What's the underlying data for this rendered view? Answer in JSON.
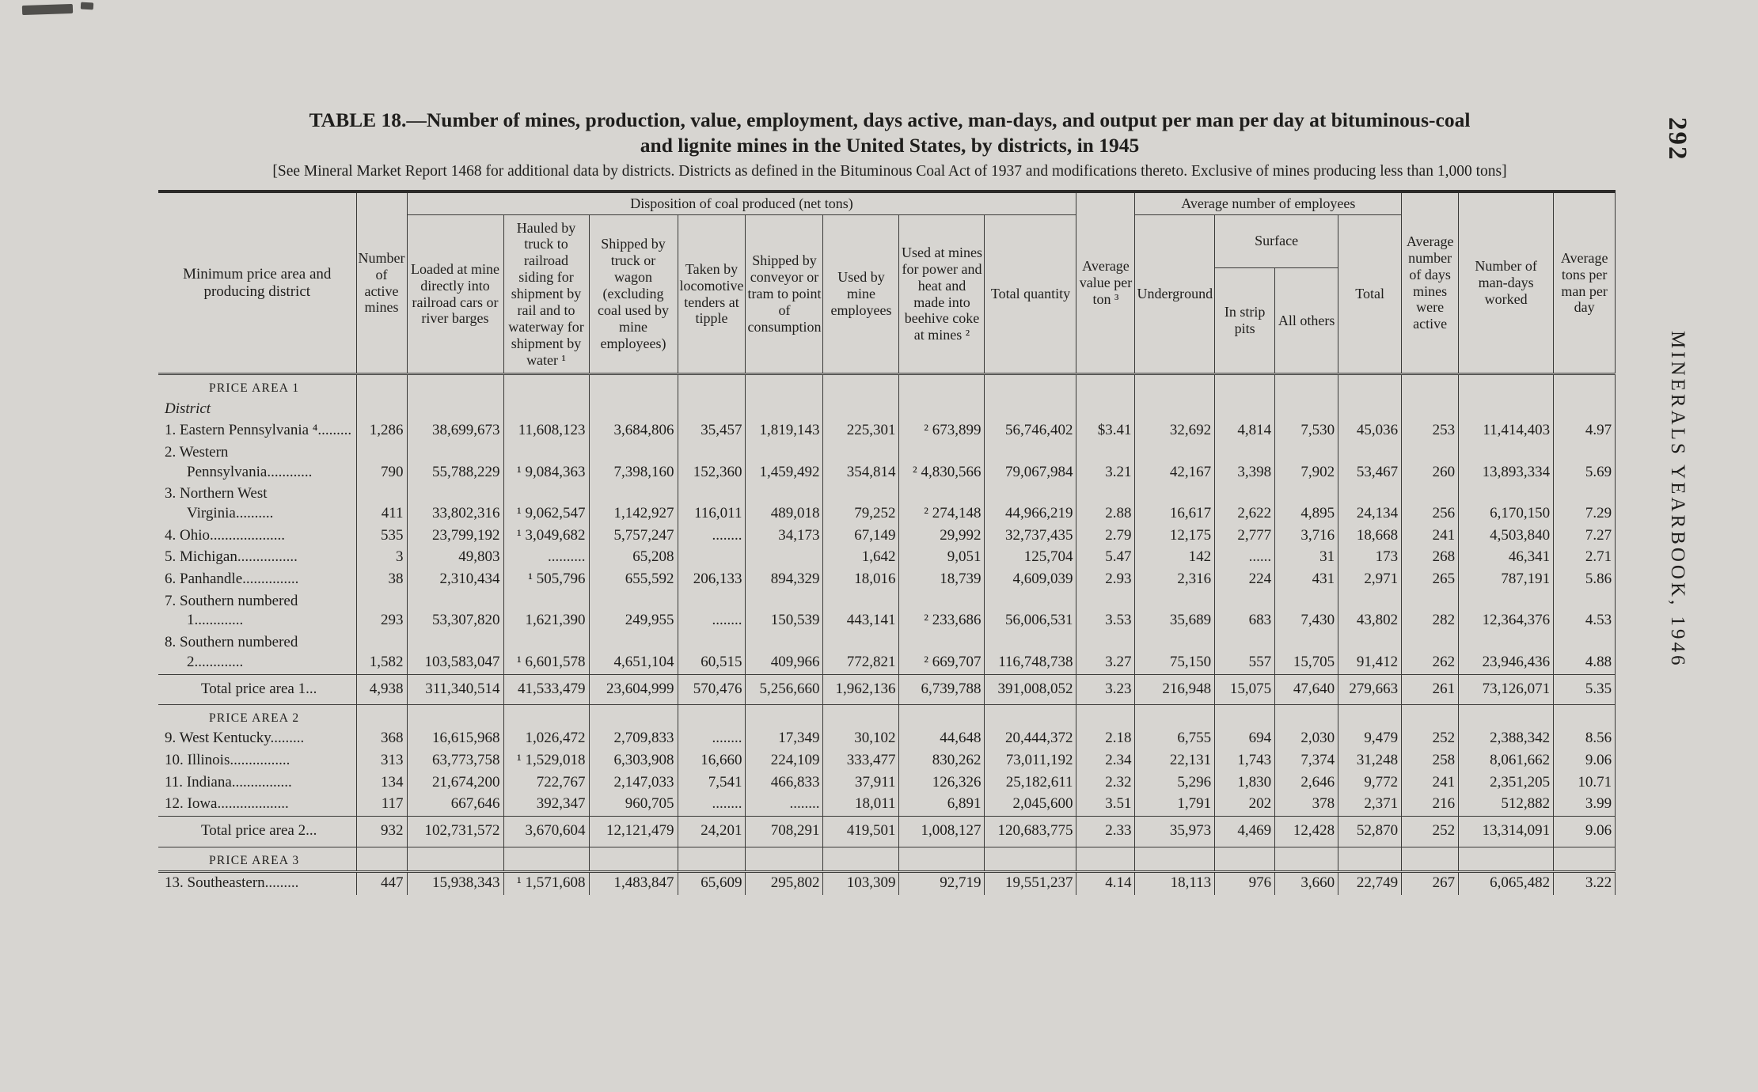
{
  "colors": {
    "paper": "#d7d5d1",
    "ink": "#1f1e1c"
  },
  "page": {
    "page_number": "292",
    "side_text": "MINERALS YEARBOOK, 1946",
    "title_line1": "TABLE 18.—Number of mines, production, value, employment, days active, man-days, and output per man per day at bituminous-coal",
    "title_line2": "and lignite mines in the United States, by districts, in 1945",
    "note": "[See Mineral Market Report 1468 for additional data by districts.  Districts as defined in the Bituminous Coal Act of 1937 and modifications thereto.  Exclusive of mines producing less than 1,000 tons]"
  },
  "table": {
    "headers": {
      "stub": "Minimum price area and producing district",
      "active_mines": "Number of active mines",
      "disposition_group": "Disposition of coal produced (net tons)",
      "disposition": [
        "Loaded at mine directly into railroad cars or river barges",
        "Hauled by truck to railroad siding for shipment by rail and to waterway for shipment by water ¹",
        "Shipped by truck or wagon (excluding coal used by mine employees)",
        "Taken by locomotive tenders at tipple",
        "Shipped by conveyor or tram to point of consumption",
        "Used by mine employees",
        "Used at mines for power and heat and made into beehive coke at mines ²",
        "Total quantity"
      ],
      "avg_value": "Average value per ton ³",
      "employees_group": "Average number of employees",
      "underground": "Underground",
      "surface_group": "Surface",
      "strip_pits": "In strip pits",
      "all_others": "All others",
      "emp_total": "Total",
      "days_active": "Average number of days mines were active",
      "man_days": "Number of man-days worked",
      "tons_per_man": "Average tons per man per day"
    },
    "rows": [
      {
        "type": "section",
        "label": "PRICE AREA 1"
      },
      {
        "type": "subhead",
        "label": "District"
      },
      {
        "type": "data",
        "label": "1. Eastern Pennsylvania ⁴.........",
        "values": [
          "1,286",
          "38,699,673",
          "11,608,123",
          "3,684,806",
          "35,457",
          "1,819,143",
          "225,301",
          "² 673,899",
          "56,746,402",
          "$3.41",
          "32,692",
          "4,814",
          "7,530",
          "45,036",
          "253",
          "11,414,403",
          "4.97"
        ]
      },
      {
        "type": "data",
        "label": "2. Western Pennsylvania............",
        "values": [
          "790",
          "55,788,229",
          "¹ 9,084,363",
          "7,398,160",
          "152,360",
          "1,459,492",
          "354,814",
          "² 4,830,566",
          "79,067,984",
          "3.21",
          "42,167",
          "3,398",
          "7,902",
          "53,467",
          "260",
          "13,893,334",
          "5.69"
        ]
      },
      {
        "type": "data",
        "label": "3. Northern West Virginia..........",
        "values": [
          "411",
          "33,802,316",
          "¹ 9,062,547",
          "1,142,927",
          "116,011",
          "489,018",
          "79,252",
          "² 274,148",
          "44,966,219",
          "2.88",
          "16,617",
          "2,622",
          "4,895",
          "24,134",
          "256",
          "6,170,150",
          "7.29"
        ]
      },
      {
        "type": "data",
        "label": "4. Ohio....................",
        "values": [
          "535",
          "23,799,192",
          "¹ 3,049,682",
          "5,757,247",
          "........",
          "34,173",
          "67,149",
          "29,992",
          "32,737,435",
          "2.79",
          "12,175",
          "2,777",
          "3,716",
          "18,668",
          "241",
          "4,503,840",
          "7.27"
        ]
      },
      {
        "type": "data",
        "label": "5. Michigan................",
        "values": [
          "3",
          "49,803",
          "..........",
          "65,208",
          "",
          "",
          "1,642",
          "9,051",
          "125,704",
          "5.47",
          "142",
          "......",
          "31",
          "173",
          "268",
          "46,341",
          "2.71"
        ]
      },
      {
        "type": "data",
        "label": "6. Panhandle...............",
        "values": [
          "38",
          "2,310,434",
          "¹ 505,796",
          "655,592",
          "206,133",
          "894,329",
          "18,016",
          "18,739",
          "4,609,039",
          "2.93",
          "2,316",
          "224",
          "431",
          "2,971",
          "265",
          "787,191",
          "5.86"
        ]
      },
      {
        "type": "data",
        "label": "7. Southern numbered 1.............",
        "values": [
          "293",
          "53,307,820",
          "1,621,390",
          "249,955",
          "........",
          "150,539",
          "443,141",
          "² 233,686",
          "56,006,531",
          "3.53",
          "35,689",
          "683",
          "7,430",
          "43,802",
          "282",
          "12,364,376",
          "4.53"
        ]
      },
      {
        "type": "data",
        "label": "8. Southern numbered 2.............",
        "values": [
          "1,582",
          "103,583,047",
          "¹ 6,601,578",
          "4,651,104",
          "60,515",
          "409,966",
          "772,821",
          "² 669,707",
          "116,748,738",
          "3.27",
          "75,150",
          "557",
          "15,705",
          "91,412",
          "262",
          "23,946,436",
          "4.88"
        ]
      },
      {
        "type": "total",
        "label": "Total price area 1...",
        "values": [
          "4,938",
          "311,340,514",
          "41,533,479",
          "23,604,999",
          "570,476",
          "5,256,660",
          "1,962,136",
          "6,739,788",
          "391,008,052",
          "3.23",
          "216,948",
          "15,075",
          "47,640",
          "279,663",
          "261",
          "73,126,071",
          "5.35"
        ]
      },
      {
        "type": "section",
        "label": "PRICE AREA 2"
      },
      {
        "type": "data",
        "label": "9. West Kentucky.........",
        "values": [
          "368",
          "16,615,968",
          "1,026,472",
          "2,709,833",
          "........",
          "17,349",
          "30,102",
          "44,648",
          "20,444,372",
          "2.18",
          "6,755",
          "694",
          "2,030",
          "9,479",
          "252",
          "2,388,342",
          "8.56"
        ]
      },
      {
        "type": "data",
        "label": "10. Illinois................",
        "values": [
          "313",
          "63,773,758",
          "¹ 1,529,018",
          "6,303,908",
          "16,660",
          "224,109",
          "333,477",
          "830,262",
          "73,011,192",
          "2.34",
          "22,131",
          "1,743",
          "7,374",
          "31,248",
          "258",
          "8,061,662",
          "9.06"
        ]
      },
      {
        "type": "data",
        "label": "11. Indiana................",
        "values": [
          "134",
          "21,674,200",
          "722,767",
          "2,147,033",
          "7,541",
          "466,833",
          "37,911",
          "126,326",
          "25,182,611",
          "2.32",
          "5,296",
          "1,830",
          "2,646",
          "9,772",
          "241",
          "2,351,205",
          "10.71"
        ]
      },
      {
        "type": "data",
        "label": "12. Iowa...................",
        "values": [
          "117",
          "667,646",
          "392,347",
          "960,705",
          "........",
          "........",
          "18,011",
          "6,891",
          "2,045,600",
          "3.51",
          "1,791",
          "202",
          "378",
          "2,371",
          "216",
          "512,882",
          "3.99"
        ]
      },
      {
        "type": "total",
        "label": "Total price area 2...",
        "values": [
          "932",
          "102,731,572",
          "3,670,604",
          "12,121,479",
          "24,201",
          "708,291",
          "419,501",
          "1,008,127",
          "120,683,775",
          "2.33",
          "35,973",
          "4,469",
          "12,428",
          "52,870",
          "252",
          "13,314,091",
          "9.06"
        ]
      },
      {
        "type": "section",
        "label": "PRICE AREA 3",
        "rule_below": "double"
      },
      {
        "type": "data",
        "label": "13. Southeastern.........",
        "values": [
          "447",
          "15,938,343",
          "¹ 1,571,608",
          "1,483,847",
          "65,609",
          "295,802",
          "103,309",
          "92,719",
          "19,551,237",
          "4.14",
          "18,113",
          "976",
          "3,660",
          "22,749",
          "267",
          "6,065,482",
          "3.22"
        ]
      }
    ]
  }
}
